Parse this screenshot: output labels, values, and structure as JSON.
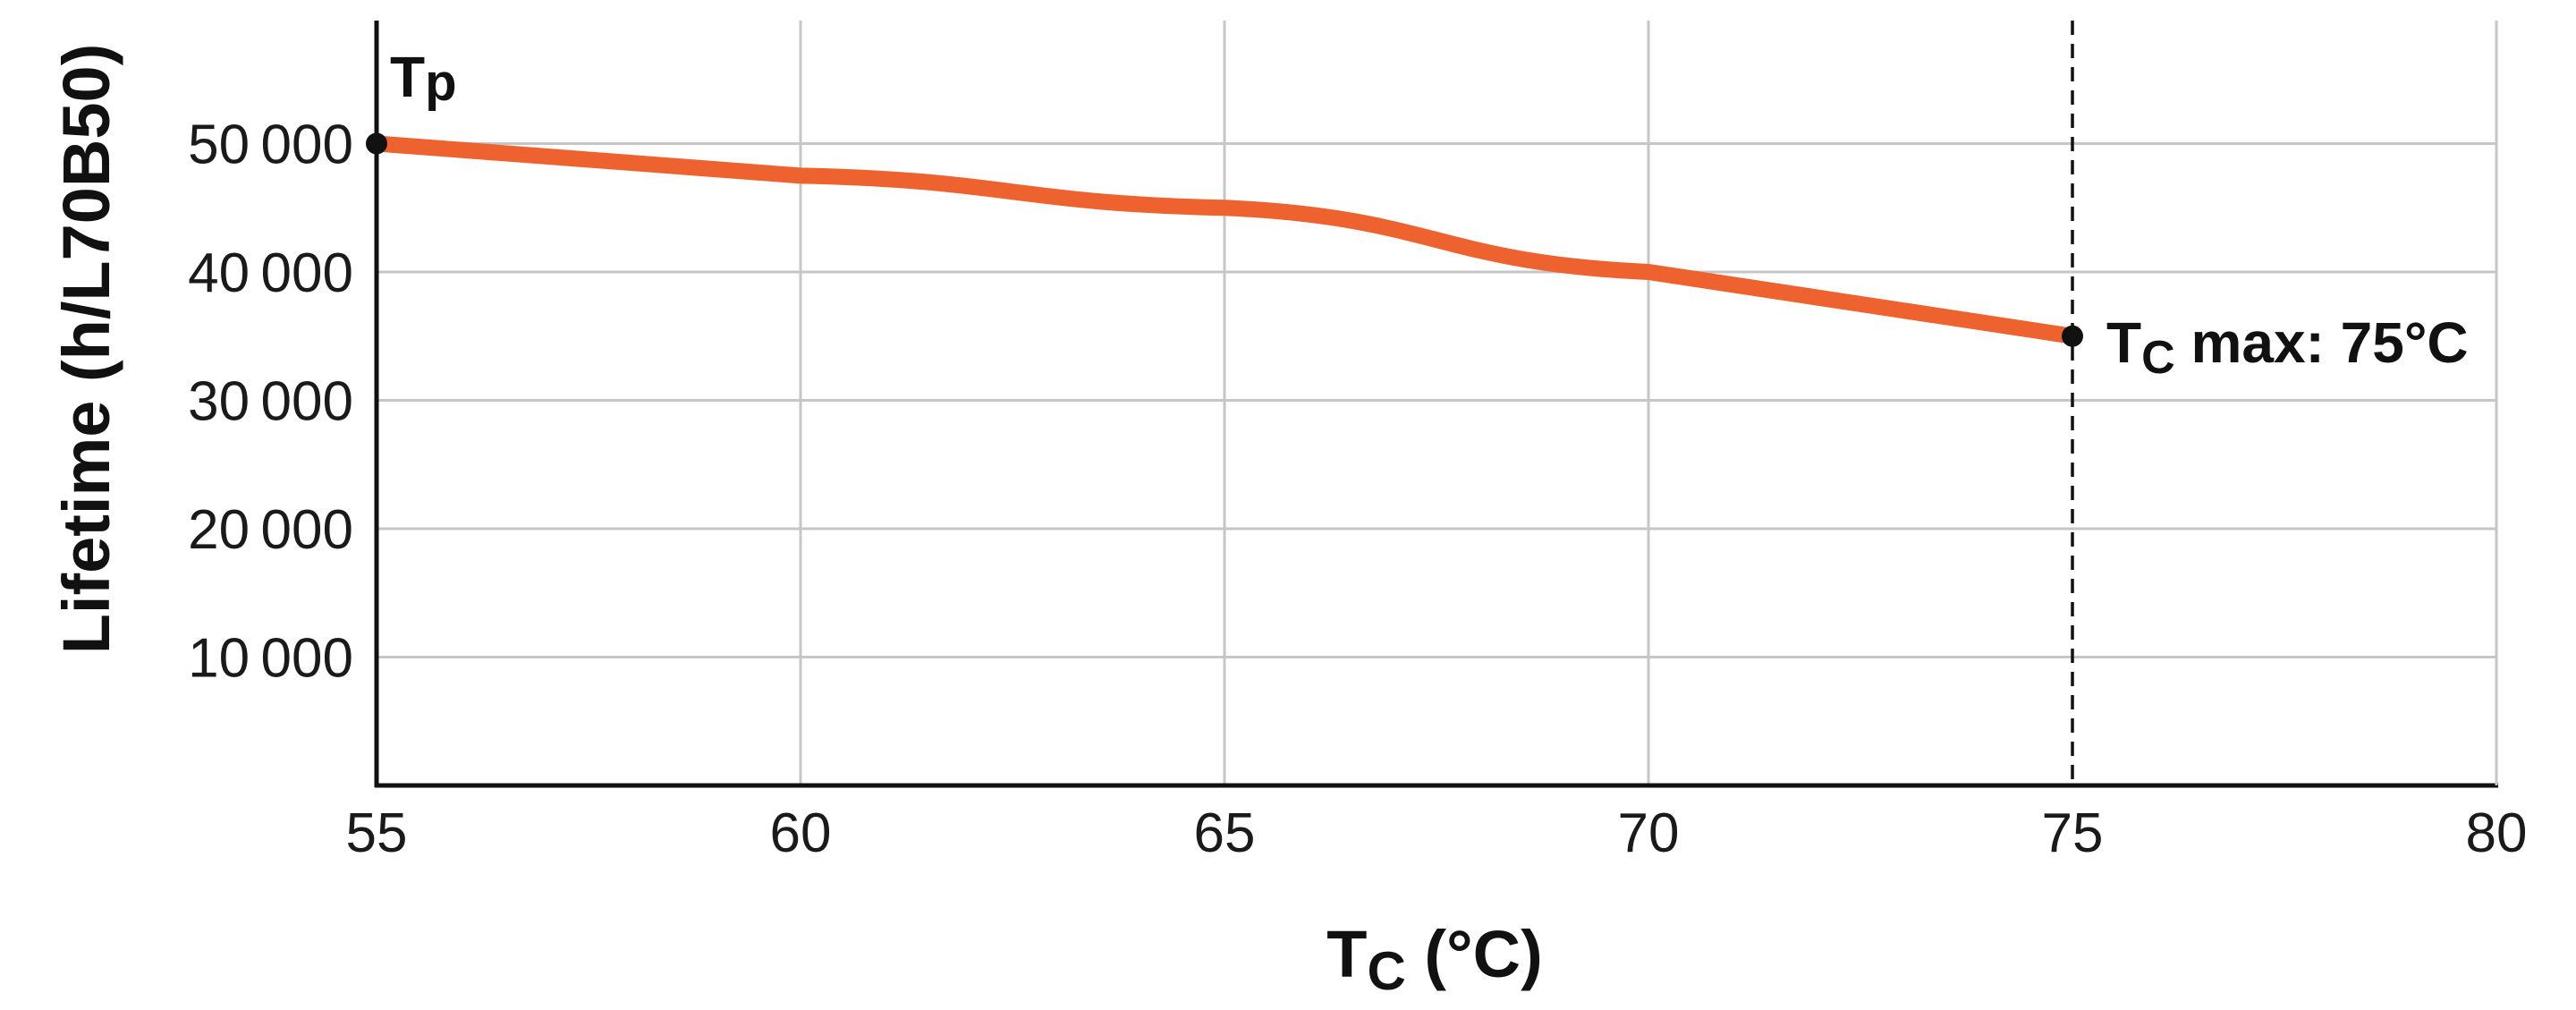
{
  "chart_data": {
    "type": "line",
    "title": "",
    "xlabel": "Tc (°C)",
    "xlabel_main": "T",
    "xlabel_sub": "C",
    "xlabel_unit": " (°C)",
    "ylabel": "Lifetime (h/L70B50)",
    "xlim": [
      55,
      80
    ],
    "ylim": [
      0,
      60000
    ],
    "x_ticks": [
      55,
      60,
      65,
      70,
      75,
      80
    ],
    "x_tick_labels": [
      "55",
      "60",
      "65",
      "70",
      "75",
      "80"
    ],
    "y_ticks": [
      10000,
      20000,
      30000,
      40000,
      50000
    ],
    "y_tick_labels": [
      "10000",
      "20000",
      "30000",
      "40000",
      "50000"
    ],
    "grid": true,
    "legend": null,
    "series": [
      {
        "name": "Lifetime",
        "color": "#EE6230",
        "x": [
          55,
          60,
          65,
          70,
          75
        ],
        "values": [
          50000,
          47500,
          45000,
          40000,
          35000
        ]
      }
    ],
    "annotations": [
      {
        "label": "Tp",
        "main": "T",
        "sub": "p",
        "x": 55,
        "y": 50000,
        "marker": "dot"
      },
      {
        "label": "Tc max: 75°C",
        "main": "T",
        "sub": "C",
        "rest": " max: 75°C",
        "x": 75,
        "y": 35000,
        "marker": "dot",
        "vline": "dashed"
      }
    ]
  },
  "colors": {
    "line": "#EE6230",
    "grid": "#C6C6C6",
    "axis": "#111111",
    "marker": "#111111"
  }
}
